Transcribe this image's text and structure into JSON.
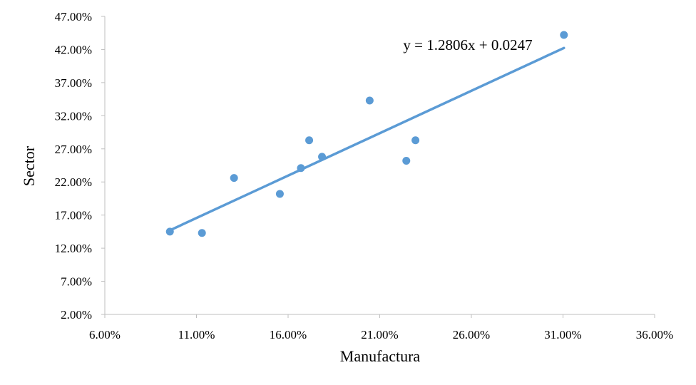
{
  "chart_data": {
    "type": "scatter",
    "xlabel": "Manufactura",
    "ylabel": "Sector",
    "xlim": [
      0.06,
      0.36
    ],
    "ylim": [
      0.02,
      0.47
    ],
    "x_ticks": [
      {
        "value": 0.06,
        "label": "6.00%"
      },
      {
        "value": 0.11,
        "label": "11.00%"
      },
      {
        "value": 0.16,
        "label": "16.00%"
      },
      {
        "value": 0.21,
        "label": "21.00%"
      },
      {
        "value": 0.26,
        "label": "26.00%"
      },
      {
        "value": 0.31,
        "label": "31.00%"
      },
      {
        "value": 0.36,
        "label": "36.00%"
      }
    ],
    "y_ticks": [
      {
        "value": 0.02,
        "label": "2.00%"
      },
      {
        "value": 0.07,
        "label": "7.00%"
      },
      {
        "value": 0.12,
        "label": "12.00%"
      },
      {
        "value": 0.17,
        "label": "17.00%"
      },
      {
        "value": 0.22,
        "label": "22.00%"
      },
      {
        "value": 0.27,
        "label": "27.00%"
      },
      {
        "value": 0.32,
        "label": "32.00%"
      },
      {
        "value": 0.37,
        "label": "37.00%"
      },
      {
        "value": 0.42,
        "label": "42.00%"
      },
      {
        "value": 0.47,
        "label": "47.00%"
      }
    ],
    "grid": false,
    "legend": "none",
    "series": [
      {
        "points": [
          {
            "x": 0.0955,
            "y": 0.145
          },
          {
            "x": 0.113,
            "y": 0.143
          },
          {
            "x": 0.1305,
            "y": 0.226
          },
          {
            "x": 0.1555,
            "y": 0.202
          },
          {
            "x": 0.167,
            "y": 0.241
          },
          {
            "x": 0.1715,
            "y": 0.283
          },
          {
            "x": 0.1785,
            "y": 0.258
          },
          {
            "x": 0.2045,
            "y": 0.343
          },
          {
            "x": 0.2245,
            "y": 0.252
          },
          {
            "x": 0.2295,
            "y": 0.283
          },
          {
            "x": 0.3105,
            "y": 0.442
          }
        ]
      }
    ],
    "trendline": {
      "type": "linear",
      "slope": 1.2806,
      "intercept": 0.0247,
      "x_range": [
        0.0955,
        0.3105
      ],
      "equation_label": "y = 1.2806x + 0.0247"
    },
    "colors": {
      "marker": "#5B9BD5",
      "trendline": "#5B9BD5",
      "axis": "#BFBFBF"
    }
  }
}
